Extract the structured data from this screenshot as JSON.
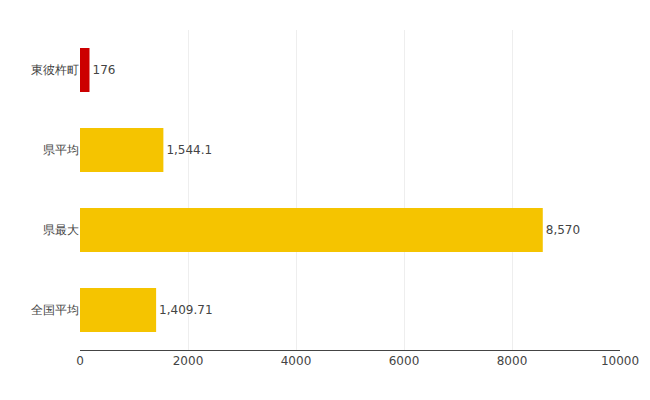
{
  "chart_data": {
    "type": "bar",
    "orientation": "horizontal",
    "categories": [
      "東彼杵町",
      "県平均",
      "県最大",
      "全国平均"
    ],
    "values": [
      176,
      1544.1,
      8570,
      1409.71
    ],
    "value_labels": [
      "176",
      "1,544.1",
      "8,570",
      "1,409.71"
    ],
    "data_labels": true,
    "colors": [
      "#cc0000",
      "#f5c400",
      "#f5c400",
      "#f5c400"
    ],
    "xlim": [
      0,
      10000
    ],
    "xticks": [
      0,
      2000,
      4000,
      6000,
      8000,
      10000
    ],
    "grid": true
  }
}
